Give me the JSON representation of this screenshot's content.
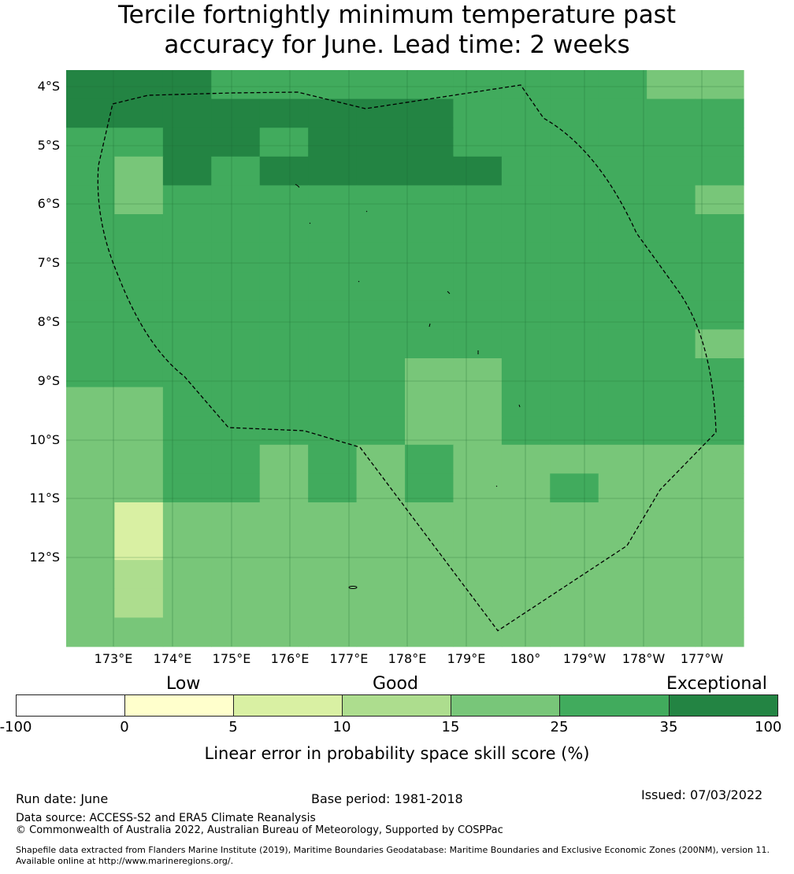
{
  "title": {
    "line1": "Tercile fortnightly minimum temperature past",
    "line2": "accuracy for June. Lead time: 2 weeks"
  },
  "map": {
    "lat_labels": [
      "4°S",
      "5°S",
      "6°S",
      "7°S",
      "8°S",
      "9°S",
      "10°S",
      "11°S",
      "12°S"
    ],
    "lon_labels": [
      "173°E",
      "174°E",
      "175°E",
      "176°E",
      "177°E",
      "178°E",
      "179°E",
      "180°",
      "179°W",
      "178°W",
      "177°W"
    ],
    "grid_lines": true,
    "boundary_style": "dashed",
    "colors": {
      "c0": "#ffffcc",
      "c1": "#d9f0a3",
      "c2": "#addd8e",
      "c3": "#78c679",
      "c4": "#41ab5d",
      "c5": "#238443"
    },
    "grid_cells": [
      "55544444444433",
      "55555555444444",
      "44554555444444",
      "43545555544444",
      "43444444444443",
      "44444444444444",
      "44444444444444",
      "44444444444444",
      "44444444444444",
      "44444444444443",
      "44444443344444",
      "33444443344444",
      "33444443344444",
      "33443434333333",
      "33443434334333",
      "31333333333333",
      "31333333333333",
      "32333333333333",
      "32333333333333",
      "33333333333333"
    ]
  },
  "colorbar": {
    "categories": [
      "Low",
      "Good",
      "Exceptional"
    ],
    "ticks": [
      "-100",
      "0",
      "5",
      "10",
      "15",
      "25",
      "35",
      "100"
    ],
    "colors": [
      "#ffffff",
      "#ffffcc",
      "#d9f0a3",
      "#addd8e",
      "#78c679",
      "#41ab5d",
      "#238443"
    ],
    "label": "Linear error in probability space skill score (%)"
  },
  "footer": {
    "run_date": "Run date: June",
    "base_period": "Base period: 1981-2018",
    "issued": "Issued: 07/03/2022",
    "data_source": "Data source: ACCESS-S2 and ERA5 Climate Reanalysis",
    "copyright": "© Commonwealth of Australia 2022, Australian Bureau of Meteorology, Supported by COSPPac",
    "shapefile": "Shapefile data extracted from Flanders Marine Institute (2019), Maritime Boundaries Geodatabase: Maritime Boundaries and Exclusive Economic Zones (200NM), version 11. Available online at http://www.marineregions.org/."
  }
}
